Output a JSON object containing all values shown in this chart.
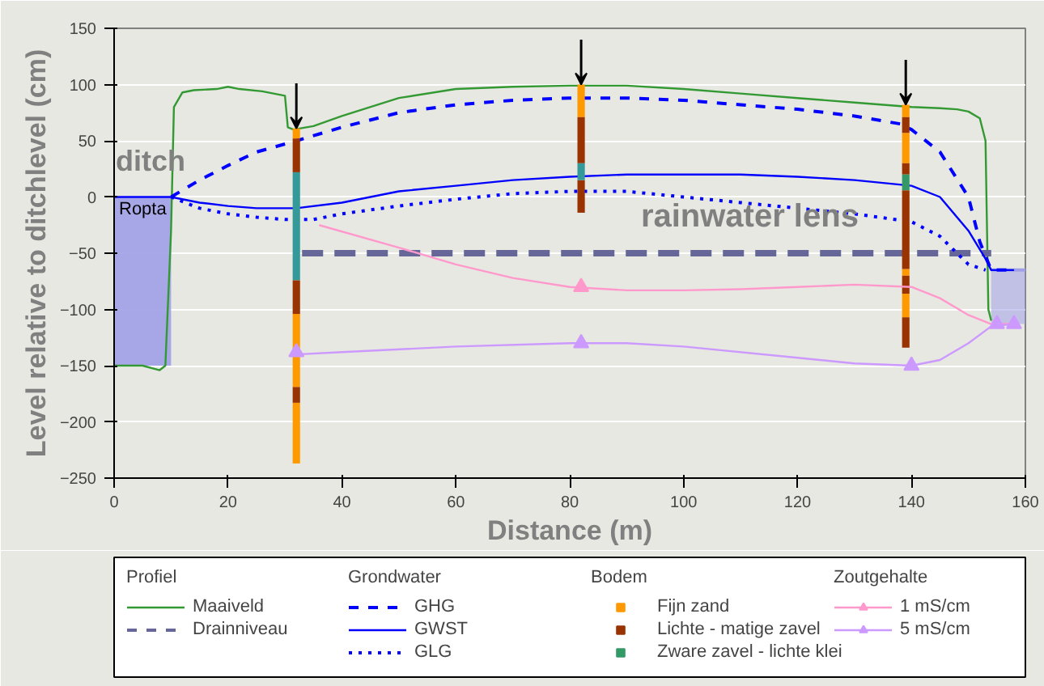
{
  "chart_data": {
    "type": "line",
    "xlabel": "Distance (m)",
    "ylabel": "Level relative to ditchlevel (cm)",
    "xlim": [
      0,
      160
    ],
    "ylim": [
      -250,
      150
    ],
    "xticks": [
      0,
      20,
      40,
      60,
      80,
      100,
      120,
      140,
      160
    ],
    "yticks": [
      -250,
      -200,
      -150,
      -100,
      -50,
      0,
      50,
      100,
      150
    ],
    "grid": "y",
    "legend": "bottom",
    "legend_title": [
      "Profiel",
      "Grondwater",
      "Bodem",
      "Zoutgehalte"
    ],
    "annotations": [
      "ditch",
      "Ropta",
      "rainwater lens"
    ],
    "series": [
      {
        "type": "area",
        "color": "#a0a0e8",
        "x": [
          0,
          5,
          10
        ],
        "values": [
          -150,
          -150,
          -150
        ]
      },
      {
        "color": "#a0a0e8",
        "line_style": "solid",
        "x": [
          154,
          157,
          160
        ],
        "values": [
          -65,
          -65,
          -65
        ],
        "lower": [
          -113,
          -113,
          -113
        ],
        "upper": [
          -65,
          -65,
          -65
        ]
      },
      {
        "name": "Maaiveld",
        "color": "#339933",
        "line_style": "solid",
        "x": [
          0,
          5,
          8,
          9,
          10,
          10.5,
          12,
          14,
          18,
          20,
          22,
          26,
          30,
          30.5,
          31.5,
          35,
          40,
          50,
          60,
          70,
          80,
          90,
          100,
          110,
          120,
          130,
          140,
          145,
          148,
          150,
          152,
          153,
          153.5,
          154
        ],
        "values": [
          -150,
          -150,
          -154,
          -150,
          -30,
          80,
          93,
          95,
          96,
          98,
          96,
          94,
          90,
          62,
          60,
          63,
          72,
          88,
          96,
          98,
          99,
          99,
          96,
          92,
          88,
          84,
          80,
          79,
          78,
          76,
          70,
          50,
          -100,
          -110
        ]
      },
      {
        "name": "Drainniveau",
        "color": "#666699",
        "line_style": "dashed",
        "x": [
          33,
          154
        ],
        "values": [
          -50,
          -50
        ]
      },
      {
        "name": "GHG",
        "color": "#0000ff",
        "line_style": "dashed",
        "x": [
          10,
          15,
          20,
          25,
          32,
          40,
          50,
          60,
          70,
          80,
          90,
          100,
          110,
          120,
          130,
          138,
          140,
          145,
          150,
          152,
          154,
          158
        ],
        "values": [
          0,
          15,
          28,
          40,
          50,
          62,
          75,
          82,
          86,
          88,
          88,
          86,
          82,
          78,
          72,
          65,
          60,
          40,
          0,
          -40,
          -65,
          -65
        ]
      },
      {
        "name": "GWST",
        "color": "#0000ff",
        "line_style": "solid",
        "x": [
          0,
          10,
          15,
          20,
          25,
          32,
          40,
          50,
          60,
          70,
          80,
          90,
          100,
          110,
          120,
          130,
          140,
          145,
          150,
          153,
          154,
          158
        ],
        "values": [
          0,
          0,
          -5,
          -8,
          -10,
          -10,
          -5,
          5,
          10,
          15,
          18,
          20,
          20,
          20,
          18,
          15,
          10,
          0,
          -30,
          -55,
          -65,
          -65
        ]
      },
      {
        "name": "GLG",
        "color": "#0000ff",
        "line_style": "dotted",
        "x": [
          10,
          15,
          20,
          25,
          30,
          35,
          40,
          50,
          60,
          70,
          80,
          90,
          100,
          110,
          120,
          130,
          140,
          145,
          150,
          153
        ],
        "values": [
          0,
          -10,
          -15,
          -18,
          -20,
          -20,
          -15,
          -8,
          -2,
          3,
          5,
          5,
          0,
          -5,
          -10,
          -15,
          -22,
          -35,
          -60,
          -65
        ]
      },
      {
        "type": "bar",
        "name": "Fijn zand",
        "color": "#ff9900",
        "x": [
          32,
          82,
          139
        ],
        "base": [
          52,
          71,
          71
        ],
        "values": [
          9,
          29,
          11
        ]
      },
      {
        "type": "bar",
        "color": "#ff9900",
        "x": [
          32,
          139
        ],
        "base": [
          -169,
          30
        ],
        "values": [
          65,
          27
        ]
      },
      {
        "type": "bar",
        "color": "#ff9900",
        "x": [
          32,
          139
        ],
        "base": [
          -237,
          -70
        ],
        "values": [
          54,
          6
        ]
      },
      {
        "type": "bar",
        "color": "#ff9900",
        "x": [
          139
        ],
        "base": [
          -107
        ],
        "values": [
          21
        ]
      },
      {
        "type": "bar",
        "name": "Lichte - matige zavel",
        "color": "#993300",
        "x": [
          32,
          82,
          139
        ],
        "base": [
          22,
          30,
          57
        ],
        "values": [
          30,
          41,
          14
        ]
      },
      {
        "type": "bar",
        "color": "#993300",
        "x": [
          32,
          82,
          139
        ],
        "base": [
          -104,
          -14,
          20
        ],
        "values": [
          30,
          29,
          10
        ]
      },
      {
        "type": "bar",
        "color": "#993300",
        "x": [
          32,
          139
        ],
        "base": [
          -183,
          -64
        ],
        "values": [
          14,
          70
        ]
      },
      {
        "type": "bar",
        "color": "#993300",
        "x": [
          139
        ],
        "base": [
          -86
        ],
        "values": [
          16
        ]
      },
      {
        "type": "bar",
        "color": "#993300",
        "x": [
          139
        ],
        "base": [
          -134
        ],
        "values": [
          27
        ]
      },
      {
        "type": "bar",
        "name": "Zware zavel - lichte klei",
        "color": "#339966",
        "colors": [
          "#339999",
          "#339999",
          "#339966"
        ],
        "x": [
          32,
          82,
          139
        ],
        "base": [
          -74,
          15,
          6
        ],
        "values": [
          96,
          15,
          14
        ]
      },
      {
        "color": "#ff99cc",
        "line_style": "solid",
        "x": [
          36,
          50,
          60,
          70,
          80,
          90,
          100,
          110,
          120,
          130,
          140,
          145,
          150,
          154,
          158
        ],
        "values": [
          -25,
          -45,
          -60,
          -72,
          -80,
          -83,
          -83,
          -82,
          -80,
          -78,
          -80,
          -90,
          -105,
          -113,
          -113
        ]
      },
      {
        "type": "scatter",
        "name": "1 mS/cm",
        "color": "#ff99cc",
        "marker": "triangle",
        "x": [
          82
        ],
        "values": [
          -80
        ]
      },
      {
        "color": "#cc99ff",
        "line_style": "solid",
        "x": [
          32,
          40,
          60,
          80,
          90,
          100,
          120,
          130,
          140,
          145,
          150,
          154,
          158
        ],
        "values": [
          -140,
          -138,
          -133,
          -130,
          -130,
          -133,
          -143,
          -148,
          -150,
          -145,
          -130,
          -115,
          -113
        ]
      },
      {
        "type": "scatter",
        "name": "5 mS/cm",
        "color": "#cc99ff",
        "marker": "triangle",
        "x": [
          32,
          82,
          140,
          155,
          158
        ],
        "values": [
          -138,
          -130,
          -150,
          -113,
          -113
        ]
      }
    ]
  }
}
